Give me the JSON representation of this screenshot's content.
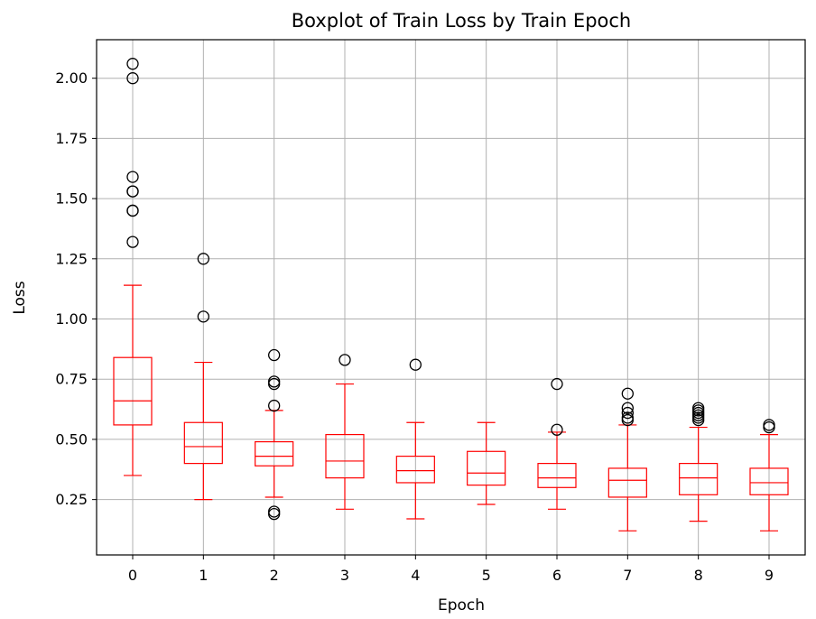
{
  "chart_data": {
    "type": "boxplot",
    "title": "Boxplot of Train Loss by Train Epoch",
    "xlabel": "Epoch",
    "ylabel": "Loss",
    "ylim": [
      0.02,
      2.16
    ],
    "y_ticks": [
      "0.25",
      "0.50",
      "0.75",
      "1.00",
      "1.25",
      "1.50",
      "1.75",
      "2.00"
    ],
    "y_tick_values": [
      0.25,
      0.5,
      0.75,
      1.0,
      1.25,
      1.5,
      1.75,
      2.0
    ],
    "grid": true,
    "box_color": "#ff0000",
    "outlier_color": "#000000",
    "boxes": [
      {
        "category": "0",
        "whislo": 0.35,
        "q1": 0.56,
        "med": 0.66,
        "q3": 0.84,
        "whishi": 1.14,
        "fliers": [
          1.32,
          1.45,
          1.45,
          1.53,
          1.53,
          1.59,
          2.0,
          2.06
        ]
      },
      {
        "category": "1",
        "whislo": 0.25,
        "q1": 0.4,
        "med": 0.47,
        "q3": 0.57,
        "whishi": 0.82,
        "fliers": [
          1.01,
          1.25
        ]
      },
      {
        "category": "2",
        "whislo": 0.26,
        "q1": 0.39,
        "med": 0.43,
        "q3": 0.49,
        "whishi": 0.62,
        "fliers": [
          0.19,
          0.2,
          0.64,
          0.73,
          0.74,
          0.85
        ]
      },
      {
        "category": "3",
        "whislo": 0.21,
        "q1": 0.34,
        "med": 0.41,
        "q3": 0.52,
        "whishi": 0.73,
        "fliers": [
          0.83
        ]
      },
      {
        "category": "4",
        "whislo": 0.17,
        "q1": 0.32,
        "med": 0.37,
        "q3": 0.43,
        "whishi": 0.57,
        "fliers": [
          0.81
        ]
      },
      {
        "category": "5",
        "whislo": 0.23,
        "q1": 0.31,
        "med": 0.36,
        "q3": 0.45,
        "whishi": 0.57,
        "fliers": []
      },
      {
        "category": "6",
        "whislo": 0.21,
        "q1": 0.3,
        "med": 0.34,
        "q3": 0.4,
        "whishi": 0.53,
        "fliers": [
          0.54,
          0.73
        ]
      },
      {
        "category": "7",
        "whislo": 0.12,
        "q1": 0.26,
        "med": 0.33,
        "q3": 0.38,
        "whishi": 0.56,
        "fliers": [
          0.58,
          0.59,
          0.61,
          0.63,
          0.69
        ]
      },
      {
        "category": "8",
        "whislo": 0.16,
        "q1": 0.27,
        "med": 0.34,
        "q3": 0.4,
        "whishi": 0.55,
        "fliers": [
          0.58,
          0.59,
          0.6,
          0.61,
          0.62,
          0.63
        ]
      },
      {
        "category": "9",
        "whislo": 0.12,
        "q1": 0.27,
        "med": 0.32,
        "q3": 0.38,
        "whishi": 0.52,
        "fliers": [
          0.55,
          0.56
        ]
      }
    ]
  }
}
